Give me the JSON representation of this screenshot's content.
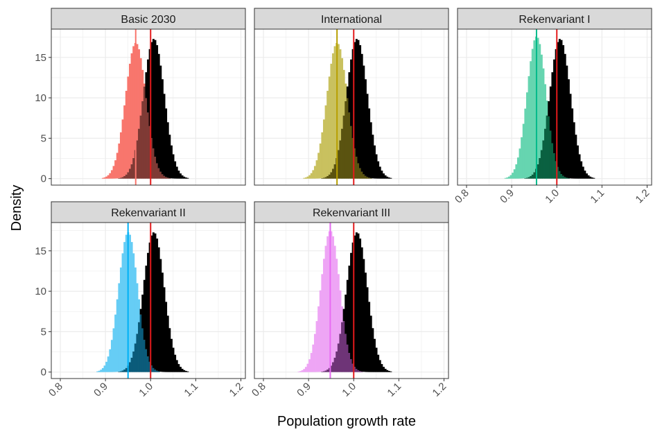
{
  "chart_data": {
    "type": "bar",
    "subtype": "faceted-histogram",
    "xlabel": "Population growth rate",
    "ylabel": "Density",
    "xlim": [
      0.78,
      1.21
    ],
    "ylim": [
      -0.8,
      18.5
    ],
    "x_ticks": [
      0.8,
      0.9,
      1.0,
      1.1,
      1.2
    ],
    "x_tick_labels": [
      "0.8",
      "0.9",
      "1.0",
      "1.1",
      "1.2"
    ],
    "y_ticks": [
      0,
      5,
      10,
      15
    ],
    "y_tick_labels": [
      "0",
      "5",
      "10",
      "15"
    ],
    "grid": true,
    "reference_line": {
      "x": 1.0,
      "color": "#e31a1c"
    },
    "baseline_distribution": {
      "mean": 1.007,
      "sd": 0.023,
      "peak": 17.3,
      "color": "#000000"
    },
    "panels": [
      {
        "title": "Basic 2030",
        "mean": 0.967,
        "sd": 0.0225,
        "peak": 16.8,
        "color": "#f8766d",
        "fill": "#f8766d",
        "overlap_fill": "#7f3a35"
      },
      {
        "title": "International",
        "mean": 0.963,
        "sd": 0.0225,
        "peak": 16.8,
        "color": "#b79f00",
        "fill": "#c9c15f",
        "overlap_fill": "#5a5310"
      },
      {
        "title": "Rekenvariant I",
        "mean": 0.955,
        "sd": 0.021,
        "peak": 17.6,
        "color": "#00ba8a",
        "fill": "#66d5b0",
        "overlap_fill": "#0a6141"
      },
      {
        "title": "Rekenvariant II",
        "mean": 0.95,
        "sd": 0.021,
        "peak": 17.3,
        "color": "#00b0f6",
        "fill": "#66cdf5",
        "overlap_fill": "#0b5b7a"
      },
      {
        "title": "Rekenvariant III",
        "mean": 0.948,
        "sd": 0.021,
        "peak": 17.5,
        "color": "#e76bf3",
        "fill": "#eea5f5",
        "overlap_fill": "#6e3477"
      }
    ]
  }
}
